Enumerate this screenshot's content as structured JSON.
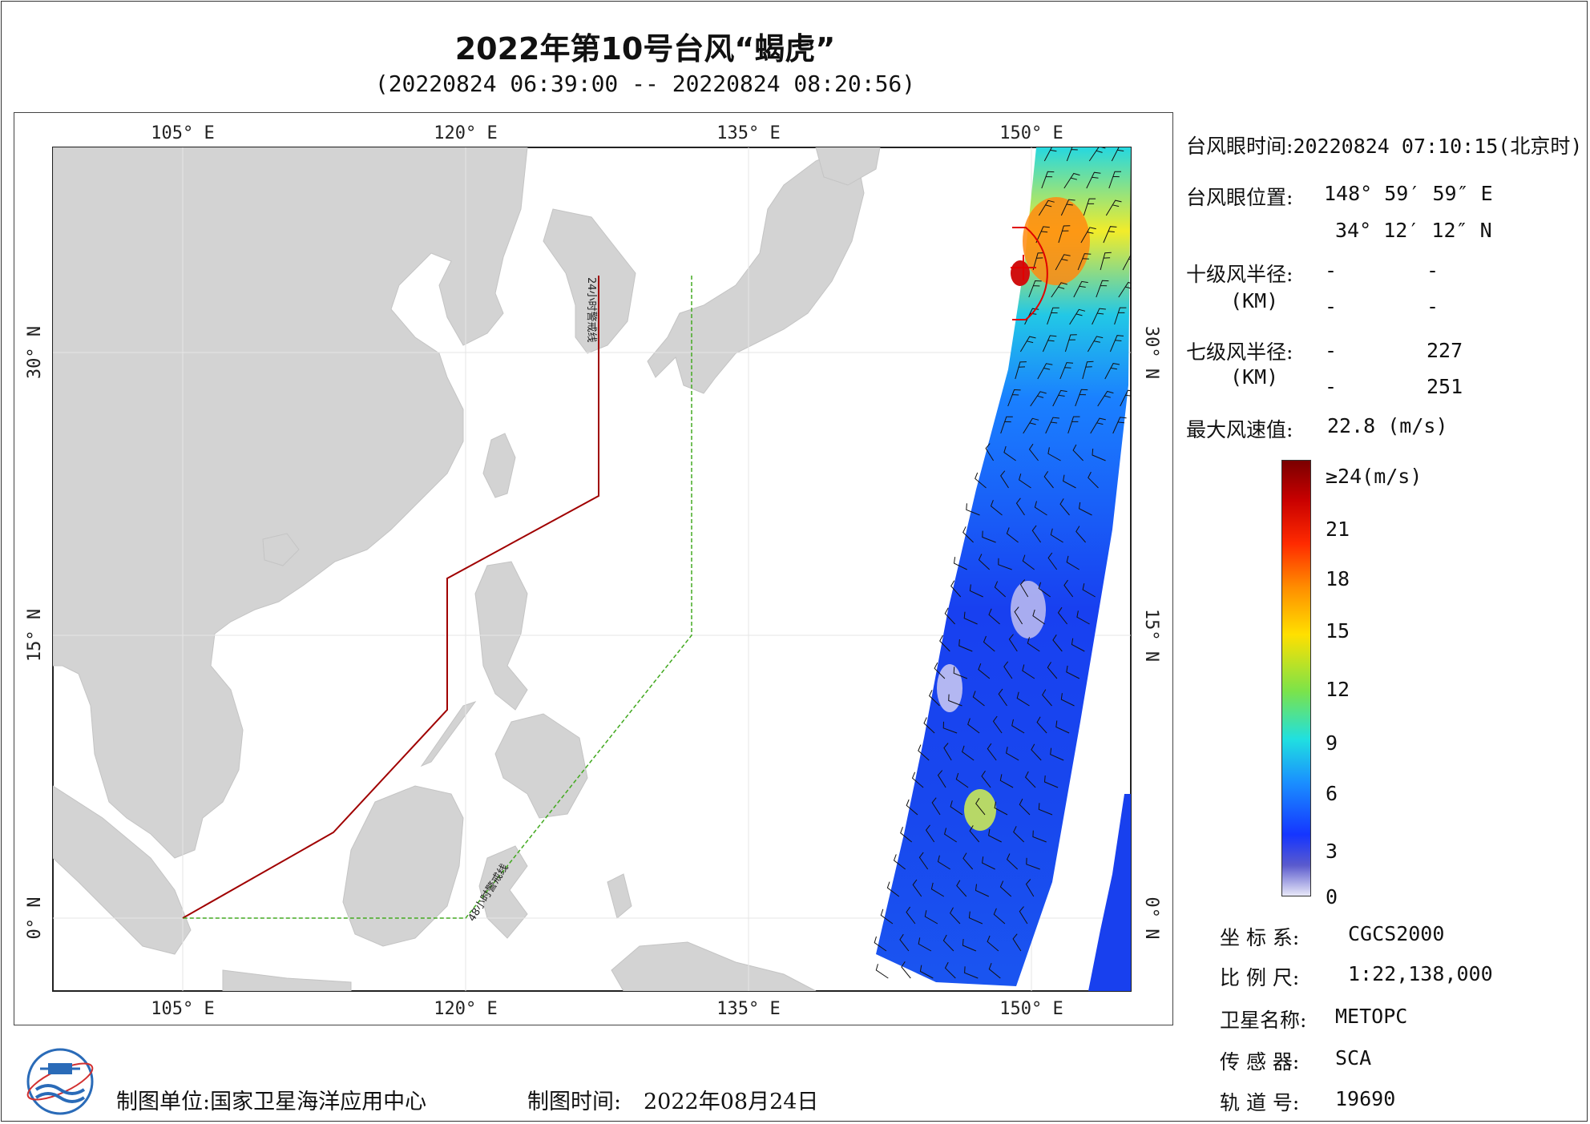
{
  "title": "2022年第10号台风“蝎虎”",
  "subtitle": "(20220824 06:39:00 -- 20220824 08:20:56)",
  "map": {
    "lon_ticks": [
      "105° E",
      "120° E",
      "135° E",
      "150° E"
    ],
    "lat_ticks": [
      "30° N",
      "15° N",
      "0° N"
    ],
    "warning_24h_label": "24小时警戒线",
    "warning_48h_label": "48小时警戒线",
    "colors": {
      "land": "#d3d3d3",
      "warning_24h": "#a00000",
      "warning_48h": "#44aa22",
      "typhoon_marker": "#e00000"
    }
  },
  "info": {
    "eye_time_label": "台风眼时间:",
    "eye_time_value": "20220824 07:10:15(北京时)",
    "eye_pos_label": "台风眼位置:",
    "eye_lon": "148° 59′ 59″ E",
    "eye_lat": "34° 12′ 12″ N",
    "r10_label": "十级风半径:",
    "r10_unit": "(KM)",
    "r10_values": [
      "-",
      "-",
      "-",
      "-"
    ],
    "r7_label": "七级风半径:",
    "r7_unit": "(KM)",
    "r7_values": [
      "-",
      "227",
      "-",
      "251"
    ],
    "max_wind_label": "最大风速值:",
    "max_wind_value": "22.8 (m/s)"
  },
  "colorbar": {
    "ticks": [
      "≥24(m/s)",
      "21",
      "18",
      "15",
      "12",
      "9",
      "6",
      "3",
      "0"
    ]
  },
  "meta": {
    "crs_label": "坐 标 系:",
    "crs_value": "CGCS2000",
    "scale_label": "比 例 尺:",
    "scale_value": "1:22,138,000",
    "sat_label": "卫星名称:",
    "sat_value": "METOPC",
    "sensor_label": "传 感 器:",
    "sensor_value": "SCA",
    "orbit_label": "轨 道 号:",
    "orbit_value": "19690"
  },
  "footer": {
    "unit_label": "制图单位:",
    "unit_value": "国家卫星海洋应用中心",
    "time_label": "制图时间:",
    "time_value": "2022年08月24日"
  }
}
